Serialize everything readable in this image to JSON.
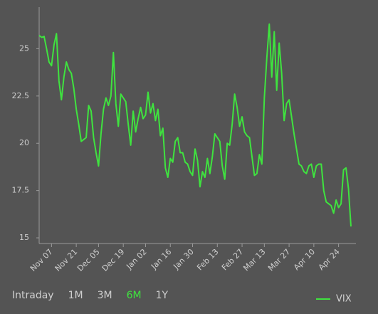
{
  "chart_data": {
    "type": "line",
    "categories": [
      null,
      null,
      null,
      null,
      null,
      "Nov 07",
      null,
      null,
      null,
      null,
      null,
      null,
      null,
      null,
      null,
      "Nov 21",
      null,
      null,
      null,
      null,
      null,
      null,
      null,
      null,
      "Dec 05",
      null,
      null,
      null,
      null,
      null,
      null,
      null,
      null,
      null,
      "Dec 19",
      null,
      null,
      null,
      null,
      null,
      null,
      null,
      null,
      "Jan 02",
      null,
      null,
      null,
      null,
      null,
      null,
      null,
      null,
      null,
      "Jan 16",
      null,
      null,
      null,
      null,
      null,
      null,
      null,
      null,
      "Jan 30",
      null,
      null,
      null,
      null,
      null,
      null,
      null,
      null,
      null,
      "Feb 13",
      null,
      null,
      null,
      null,
      null,
      null,
      null,
      null,
      null,
      "Feb 27",
      null,
      null,
      null,
      null,
      null,
      null,
      null,
      null,
      "Mar 13",
      null,
      null,
      null,
      null,
      null,
      null,
      null,
      null,
      null,
      "Mar 27",
      null,
      null,
      null,
      null,
      null,
      null,
      null,
      null,
      null,
      "Apr 10",
      null,
      null,
      null,
      null,
      null,
      null,
      null,
      null,
      null,
      "Apr 24",
      null,
      null,
      null,
      null,
      null
    ],
    "series": [
      {
        "name": "VIX",
        "color": "#3fe33f",
        "values": [
          25.7,
          25.6,
          25.65,
          25,
          24.3,
          24.1,
          25.2,
          25.8,
          23.3,
          22.3,
          23.5,
          24.3,
          23.9,
          23.7,
          22.9,
          21.8,
          21,
          20.1,
          20.2,
          20.3,
          22,
          21.7,
          20.3,
          19.5,
          18.8,
          20.5,
          21.8,
          22.4,
          22,
          22.5,
          24.8,
          22.1,
          20.9,
          22.6,
          22.4,
          22.2,
          21,
          19.9,
          21.7,
          20.6,
          21.3,
          21.9,
          21.3,
          21.5,
          22.7,
          21.6,
          22.1,
          21.2,
          21.8,
          20.4,
          20.8,
          18.7,
          18.2,
          19.2,
          19,
          20.1,
          20.3,
          19.5,
          19.5,
          19,
          18.9,
          18.5,
          18.3,
          19.7,
          19.1,
          17.7,
          18.5,
          18.2,
          19.2,
          18.4,
          19.3,
          20.5,
          20.3,
          20.1,
          18.8,
          18.1,
          20,
          19.9,
          21,
          22.6,
          21.9,
          20.9,
          21.4,
          20.6,
          20.4,
          20.3,
          19.3,
          18.3,
          18.4,
          19.4,
          18.9,
          22.4,
          24.5,
          26.3,
          23.5,
          25.9,
          22.8,
          25.3,
          23.7,
          21.2,
          22.1,
          22.3,
          21.4,
          20.5,
          19.7,
          18.9,
          18.8,
          18.5,
          18.4,
          18.8,
          18.9,
          18.2,
          18.8,
          18.9,
          18.9,
          17.5,
          16.9,
          16.8,
          16.7,
          16.3,
          17,
          16.6,
          16.8,
          18.6,
          18.7,
          17.6,
          15.6
        ]
      }
    ],
    "ylim": [
      14.7,
      27.2
    ],
    "yticks": [
      15,
      {
        "value": 17.5,
        "label": "17.5"
      },
      20,
      {
        "value": 22.5,
        "label": "22.5"
      },
      25
    ],
    "legend": "bottom-right"
  },
  "range_buttons": [
    "Intraday",
    "1M",
    "3M",
    "6M",
    "1Y"
  ],
  "active_range": "6M"
}
